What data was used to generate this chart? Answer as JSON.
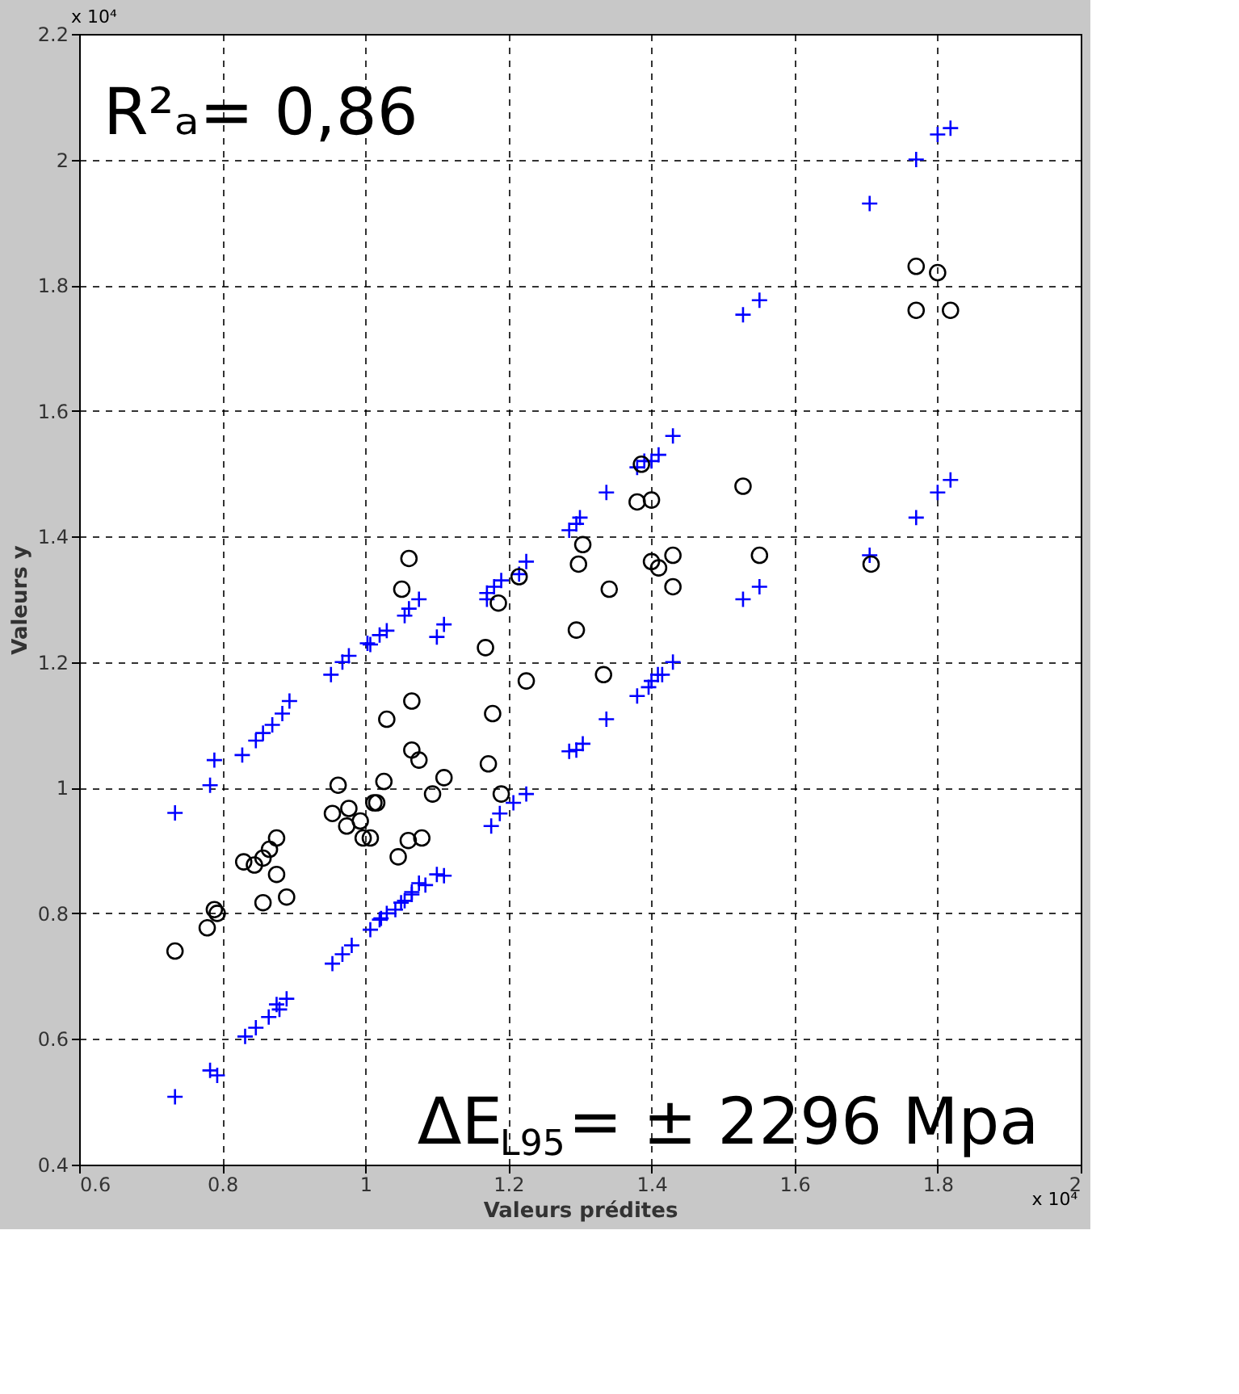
{
  "chart_data": {
    "type": "scatter",
    "xlabel": "Valeurs prédites",
    "ylabel": "Valeurs y",
    "xlim": [
      0.6,
      2
    ],
    "ylim": [
      0.4,
      2.2
    ],
    "xticks": [
      0.6,
      0.8,
      1,
      1.2,
      1.4,
      1.6,
      1.8,
      2
    ],
    "yticks": [
      0.4,
      0.6,
      0.8,
      1,
      1.2,
      1.4,
      1.6,
      1.8,
      2,
      2.2
    ],
    "grid": true,
    "line_style": "dashed",
    "annotations": [
      "x 10⁴",
      "x 10⁴",
      "R²ₐ= 0,86",
      "ΔE$_{L95}$= ± 2296 Mpa"
    ],
    "series": [
      {
        "color": "#0000ff",
        "marker": "cross",
        "x": [
          1.818,
          1.8,
          1.77,
          1.705,
          1.818,
          1.8,
          1.77,
          1.705,
          1.551,
          1.528,
          1.551,
          1.528,
          1.43,
          1.41,
          1.4,
          1.43,
          1.415,
          1.4,
          1.39,
          1.38,
          1.337,
          1.3,
          1.295,
          1.285,
          1.225,
          1.215,
          1.19,
          1.18,
          1.17,
          1.17,
          1.11,
          1.1,
          1.075,
          1.061,
          1.055,
          1.03,
          1.02,
          1.007,
          1.409,
          1.396,
          1.38,
          1.337,
          1.304,
          1.295,
          1.285,
          1.225,
          1.207,
          1.188,
          1.176,
          1.11,
          1.084,
          1.065,
          1.05,
          1.03,
          1.02,
          1.003,
          0.977,
          0.968,
          0.952,
          0.894,
          0.884,
          0.87,
          0.857,
          0.847,
          0.828,
          0.789,
          0.783,
          0.734,
          1.1,
          1.075,
          1.065,
          1.055,
          1.042,
          1.022,
          1.007,
          0.981,
          0.968,
          0.954,
          0.89,
          0.88,
          0.876,
          0.865,
          0.847,
          0.832,
          0.793,
          0.783,
          0.734
        ],
        "values": [
          2.05,
          2.04,
          2.0,
          1.93,
          1.49,
          1.47,
          1.43,
          1.37,
          1.776,
          1.753,
          1.32,
          1.3,
          1.56,
          1.53,
          1.52,
          1.2,
          1.18,
          1.17,
          1.52,
          1.51,
          1.47,
          1.43,
          1.42,
          1.41,
          1.36,
          1.34,
          1.33,
          1.32,
          1.31,
          1.3,
          1.26,
          1.24,
          1.3,
          1.285,
          1.274,
          1.25,
          1.243,
          1.228,
          1.18,
          1.16,
          1.146,
          1.109,
          1.07,
          1.06,
          1.058,
          0.99,
          0.976,
          0.959,
          0.939,
          0.86,
          0.845,
          0.83,
          0.817,
          0.8,
          0.79,
          1.23,
          1.21,
          1.2,
          1.18,
          1.138,
          1.118,
          1.1,
          1.087,
          1.075,
          1.052,
          1.044,
          1.004,
          0.96,
          0.862,
          0.848,
          0.834,
          0.82,
          0.806,
          0.792,
          0.774,
          0.749,
          0.735,
          0.72,
          0.664,
          0.647,
          0.655,
          0.635,
          0.618,
          0.604,
          0.542,
          0.55,
          0.508
        ]
      },
      {
        "color": "#000000",
        "marker": "circle",
        "x": [
          1.8,
          1.818,
          1.77,
          1.77,
          1.707,
          1.551,
          1.528,
          1.43,
          1.43,
          1.4,
          1.41,
          1.386,
          1.4,
          1.38,
          1.341,
          1.304,
          1.298,
          1.295,
          1.333,
          1.225,
          1.215,
          1.186,
          1.168,
          1.178,
          1.172,
          1.19,
          1.061,
          1.051,
          1.065,
          1.03,
          1.065,
          1.075,
          1.11,
          1.094,
          1.026,
          1.016,
          1.079,
          1.06,
          1.046,
          1.007,
          0.962,
          0.977,
          0.954,
          0.974,
          0.997,
          0.876,
          0.866,
          0.857,
          0.845,
          0.876,
          0.89,
          0.857,
          0.83,
          0.793,
          0.734,
          0.789,
          0.779,
          1.012,
          0.993
        ],
        "values": [
          1.82,
          1.76,
          1.83,
          1.76,
          1.356,
          1.37,
          1.48,
          1.37,
          1.32,
          1.36,
          1.35,
          1.515,
          1.458,
          1.455,
          1.316,
          1.387,
          1.356,
          1.251,
          1.18,
          1.17,
          1.336,
          1.294,
          1.223,
          1.118,
          1.038,
          0.99,
          1.365,
          1.316,
          1.138,
          1.109,
          1.06,
          1.044,
          1.016,
          0.99,
          1.01,
          0.976,
          0.92,
          0.916,
          0.89,
          0.92,
          1.004,
          0.967,
          0.959,
          0.939,
          0.92,
          0.92,
          0.902,
          0.888,
          0.877,
          0.862,
          0.826,
          0.817,
          0.882,
          0.8,
          0.74,
          0.806,
          0.777,
          0.976,
          0.947
        ]
      }
    ]
  }
}
